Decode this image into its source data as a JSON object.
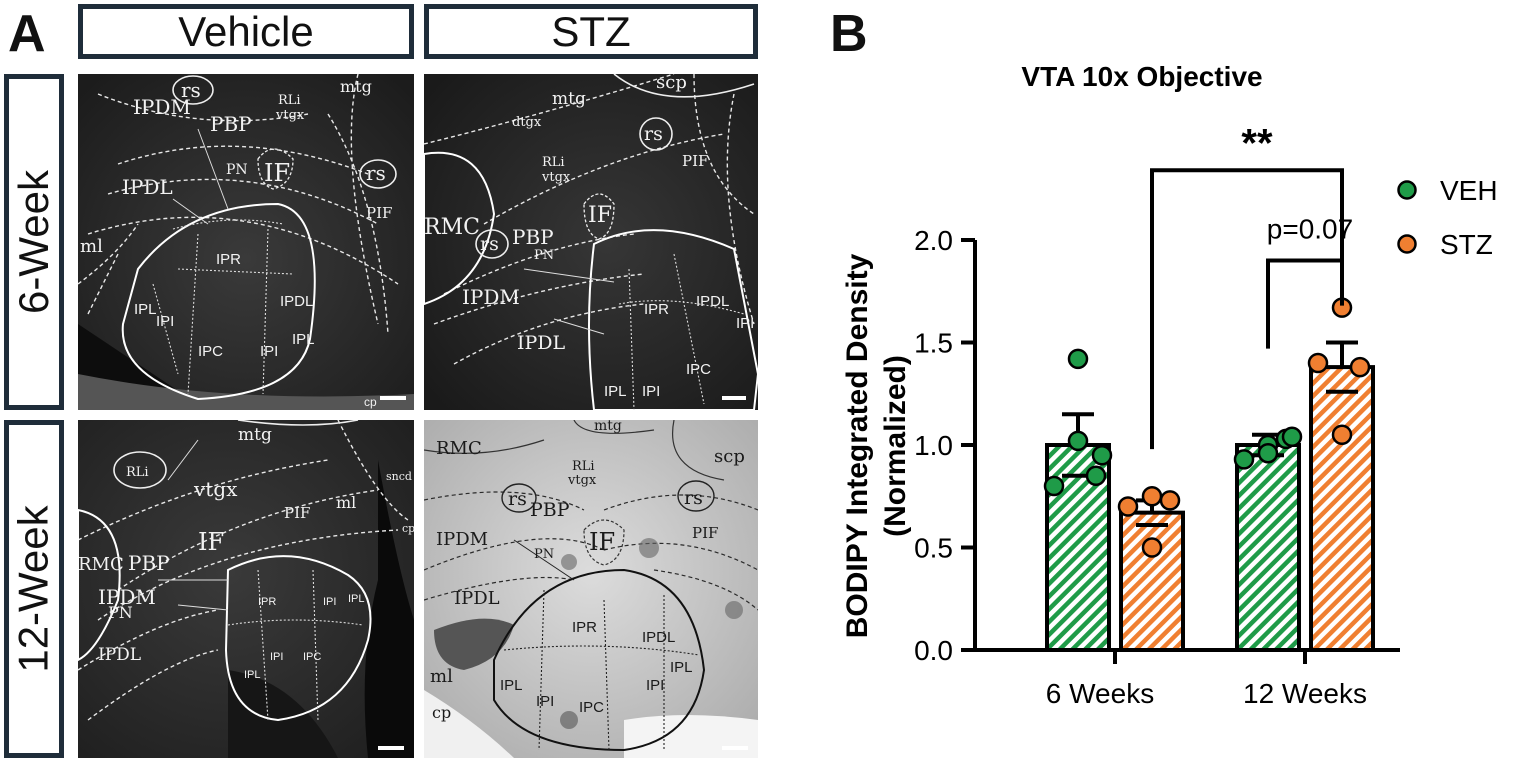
{
  "panel_a": {
    "letter": "A",
    "columns": [
      "Vehicle",
      "STZ"
    ],
    "rows": [
      "6-Week",
      "12-Week"
    ],
    "images": {
      "veh6": [
        "rs",
        "IPDM",
        "PBP",
        "RLi",
        "vtgx",
        "mtg",
        "PN",
        "IF",
        "rs",
        "IPDL",
        "PIF",
        "ml",
        "IPR",
        "IPL",
        "IPI",
        "IPC",
        "IPI",
        "IPDL",
        "IPL",
        "cp"
      ],
      "stz6": [
        "mtg",
        "dtgx",
        "scp",
        "rs",
        "RLi",
        "vtgx",
        "PIF",
        "RMC",
        "rs",
        "PBP",
        "IF",
        "PN",
        "IPDM",
        "IPR",
        "IPDL",
        "IPDL",
        "IPI",
        "IPL",
        "IPI",
        "IPC"
      ],
      "veh12": [
        "mtg",
        "RLi",
        "vtgx",
        "PIF",
        "ml",
        "sncd",
        "cp",
        "RMC",
        "PBP",
        "IF",
        "IPDM",
        "PN",
        "IPR",
        "IPI",
        "IPDL",
        "IPL",
        "IPI",
        "IPC",
        "IPL"
      ],
      "stz12": [
        "RMC",
        "mtg",
        "scp",
        "RLi",
        "vtgx",
        "rs",
        "PBP",
        "rs",
        "IPDM",
        "IF",
        "PN",
        "PIF",
        "IPDL",
        "IPR",
        "IPDL",
        "ml",
        "IPL",
        "IPI",
        "IPC",
        "IPI",
        "IPL",
        "cp"
      ]
    }
  },
  "panel_b": {
    "letter": "B"
  },
  "chart_data": {
    "type": "bar",
    "title": "VTA 10x Objective",
    "ylabel_line1": "BODIPY Integrated Density",
    "ylabel_line2": "(Normalized)",
    "xlabel": "",
    "categories": [
      "6 Weeks",
      "12 Weeks"
    ],
    "ylim": [
      0,
      2.0
    ],
    "yticks": [
      "0.0",
      "0.5",
      "1.0",
      "1.5",
      "2.0"
    ],
    "ytick_values": [
      0,
      0.5,
      1.0,
      1.5,
      2.0
    ],
    "series": [
      {
        "name": "VEH",
        "color": "#1f9b48",
        "values": [
          1.0,
          1.0
        ],
        "sem": [
          0.15,
          0.05
        ],
        "points": [
          [
            1.42,
            0.85,
            0.8,
            1.02,
            0.95
          ],
          [
            1.0,
            1.03,
            0.93,
            0.96,
            1.04
          ]
        ]
      },
      {
        "name": "STZ",
        "color": "#f07f31",
        "values": [
          0.67,
          1.38
        ],
        "sem": [
          0.06,
          0.12
        ],
        "points": [
          [
            0.75,
            0.73,
            0.7,
            0.5
          ],
          [
            1.67,
            1.38,
            1.4,
            1.05
          ]
        ]
      }
    ],
    "annotations": [
      {
        "label": "**",
        "from": "STZ 6 Weeks",
        "to": "STZ 12 Weeks",
        "level": 2.34
      },
      {
        "label": "p=0.07",
        "from": "VEH 12 Weeks",
        "to": "STZ 12 Weeks",
        "level": 1.9
      }
    ],
    "legend": {
      "position": "top-right",
      "entries": [
        "VEH",
        "STZ"
      ]
    }
  }
}
